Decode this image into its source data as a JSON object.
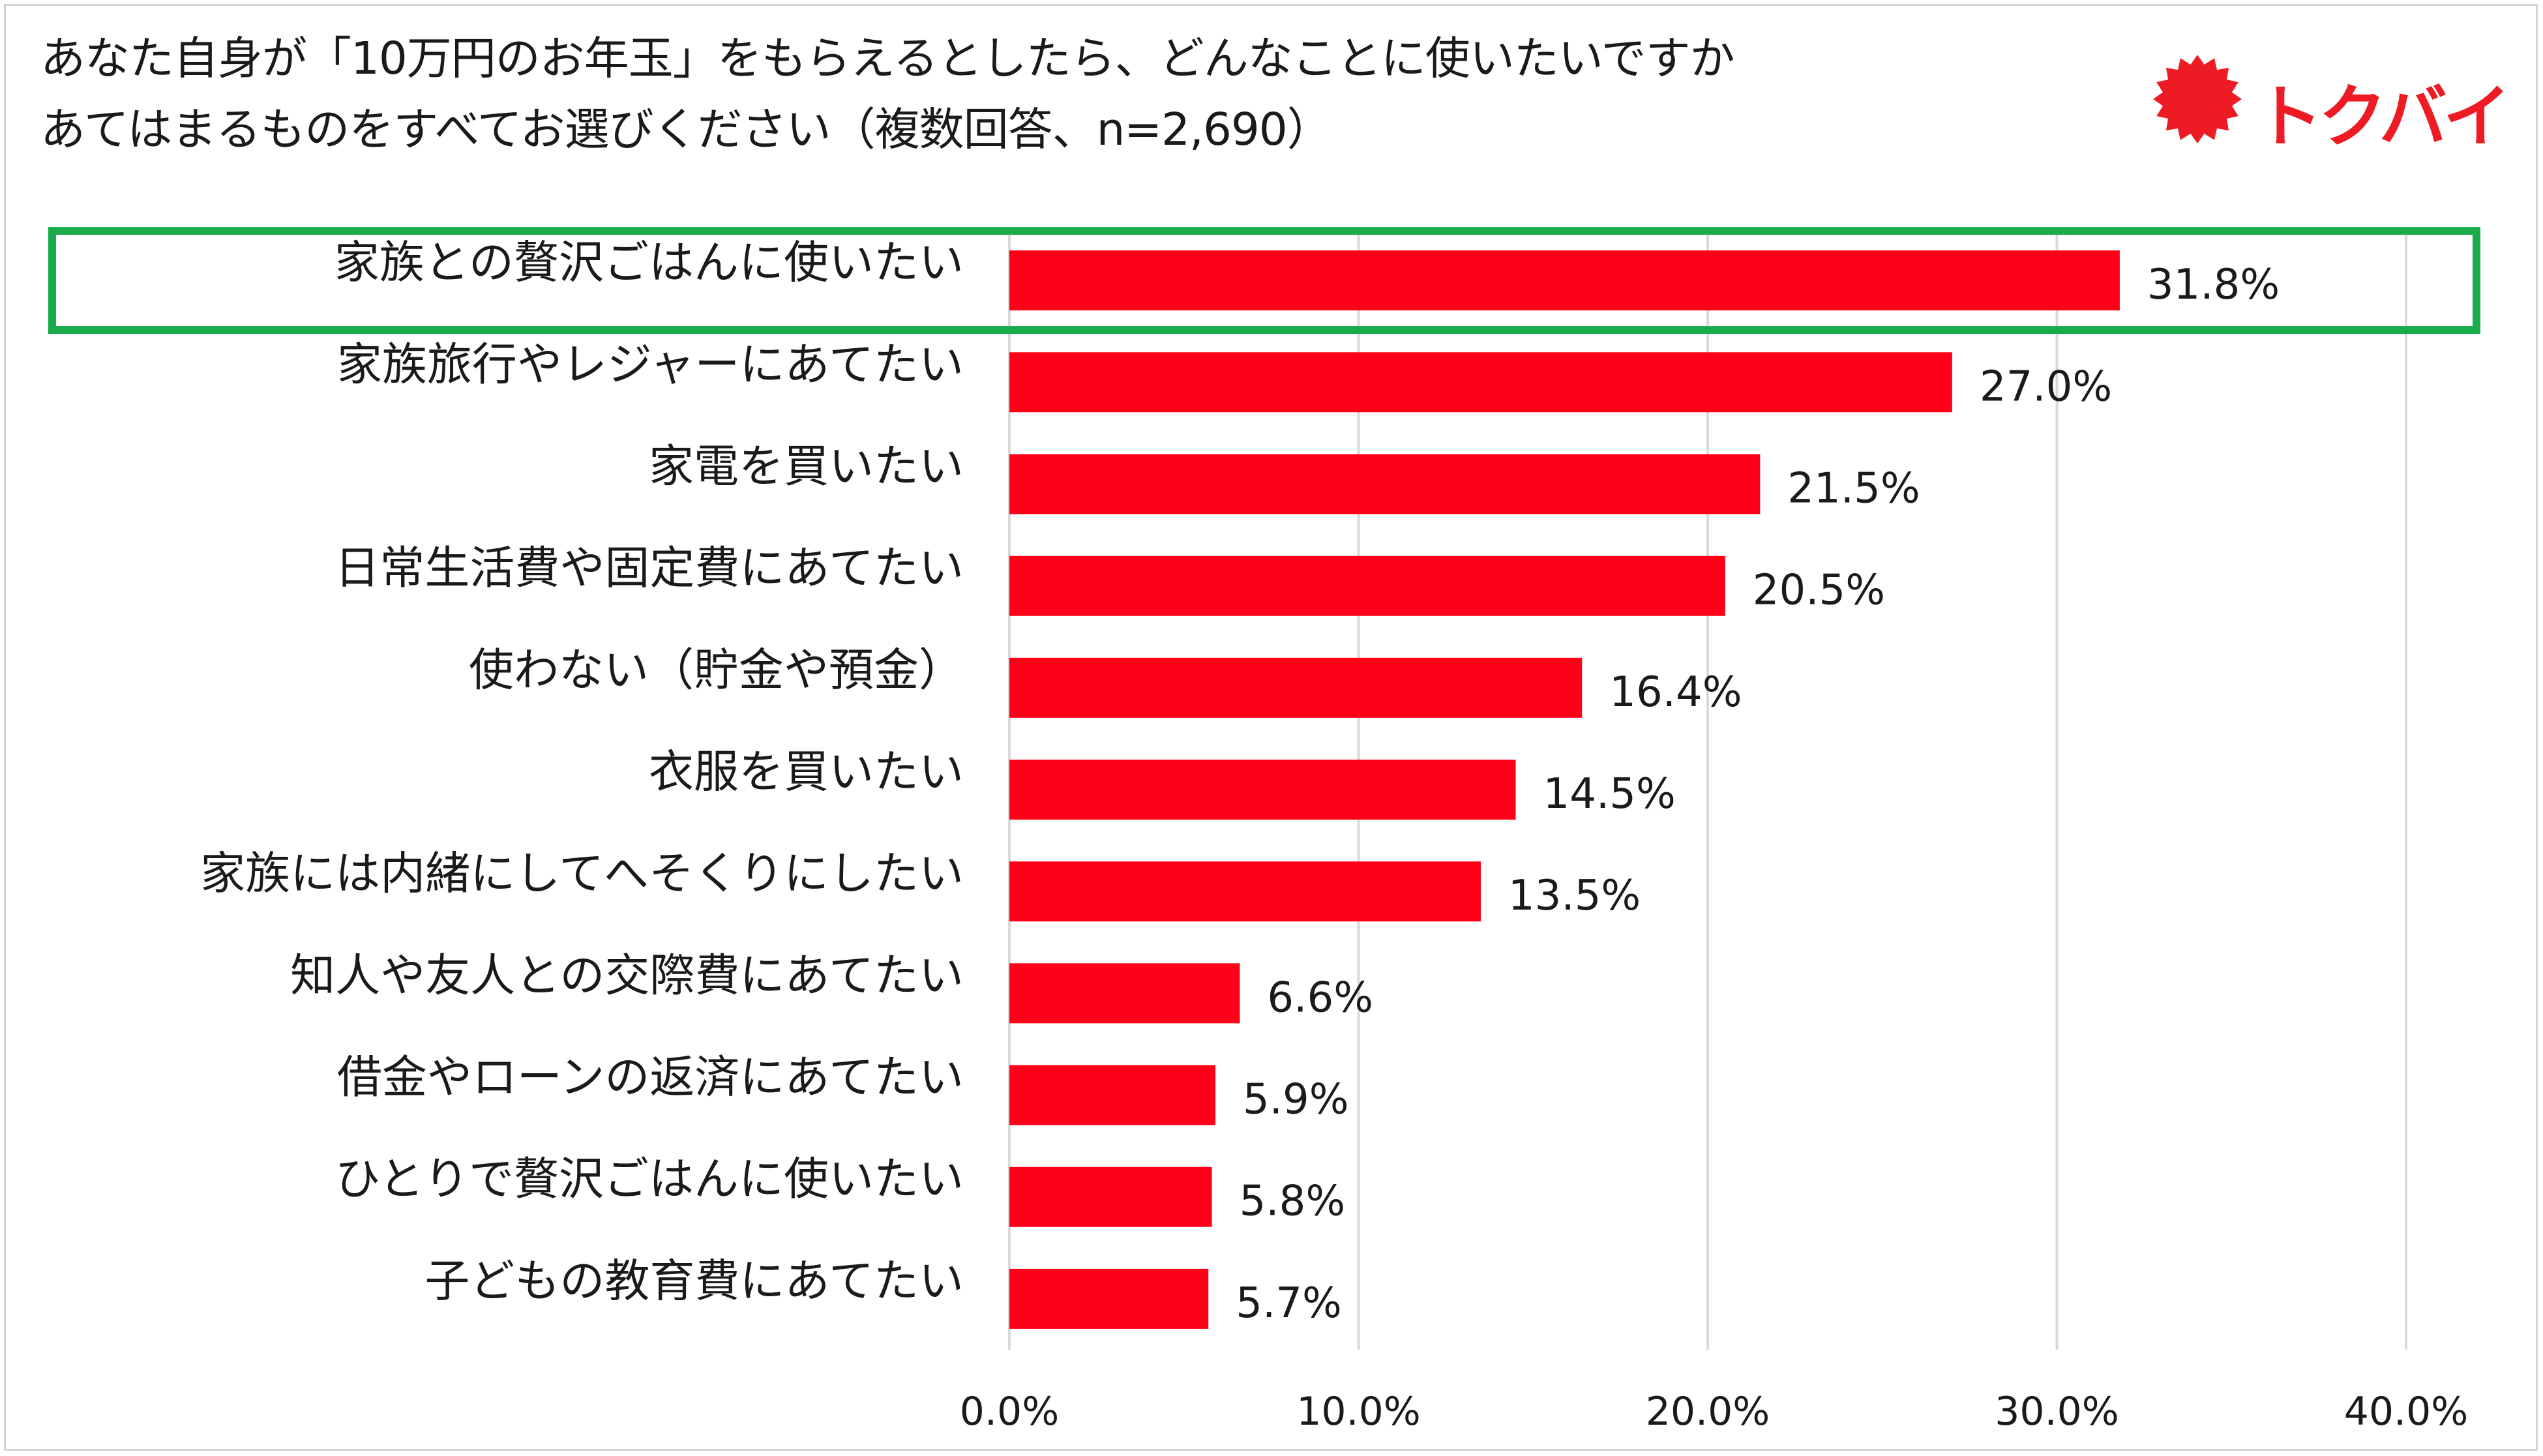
{
  "header": {
    "title_line1": "あなた自身が「10万円のお年玉」をもらえるとしたら、どんなことに使いたいですか",
    "title_line2": "あてはまるものをすべてお選びください（複数回答、n=2,690）"
  },
  "logo": {
    "text": "トクバイ",
    "icon": "red-burst-icon",
    "color": "#ed1c24"
  },
  "chart_data": {
    "type": "bar",
    "orientation": "horizontal",
    "categories": [
      "家族との贅沢ごはんに使いたい",
      "家族旅行やレジャーにあてたい",
      "家電を買いたい",
      "日常生活費や固定費にあてたい",
      "使わない（貯金や預金）",
      "衣服を買いたい",
      "家族には内緒にしてへそくりにしたい",
      "知人や友人との交際費にあてたい",
      "借金やローンの返済にあてたい",
      "ひとりで贅沢ごはんに使いたい",
      "子どもの教育費にあてたい"
    ],
    "values": [
      31.8,
      27.0,
      21.5,
      20.5,
      16.4,
      14.5,
      13.5,
      6.6,
      5.9,
      5.8,
      5.7
    ],
    "value_labels": [
      "31.8%",
      "27.0%",
      "21.5%",
      "20.5%",
      "16.4%",
      "14.5%",
      "13.5%",
      "6.6%",
      "5.9%",
      "5.8%",
      "5.7%"
    ],
    "xlim": [
      0,
      40
    ],
    "xticks": [
      "0.0%",
      "10.0%",
      "20.0%",
      "30.0%",
      "40.0%"
    ],
    "grid": "vertical",
    "bar_color": "#ff0018",
    "highlight": {
      "category": "家族との贅沢ごはんに使いたい",
      "color": "#1aab4b"
    }
  }
}
